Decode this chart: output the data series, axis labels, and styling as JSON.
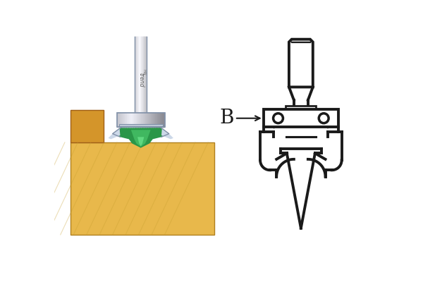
{
  "bg_color": "#ffffff",
  "line_color": "#1a1a1a",
  "line_width": 2.8,
  "wood_color": "#d4952a",
  "wood_light": "#e8b84b",
  "wood_side": "#c07820",
  "silver_dark": "#8090a8",
  "silver_mid": "#a8b8c8",
  "silver_light": "#ccd8e8",
  "silver_bright": "#e8eef8",
  "green_dark": "#1a7a38",
  "green_mid": "#2a9648",
  "green_light": "#40b860",
  "green_bright": "#60d880",
  "label_B": "B",
  "label_fontsize": 20
}
